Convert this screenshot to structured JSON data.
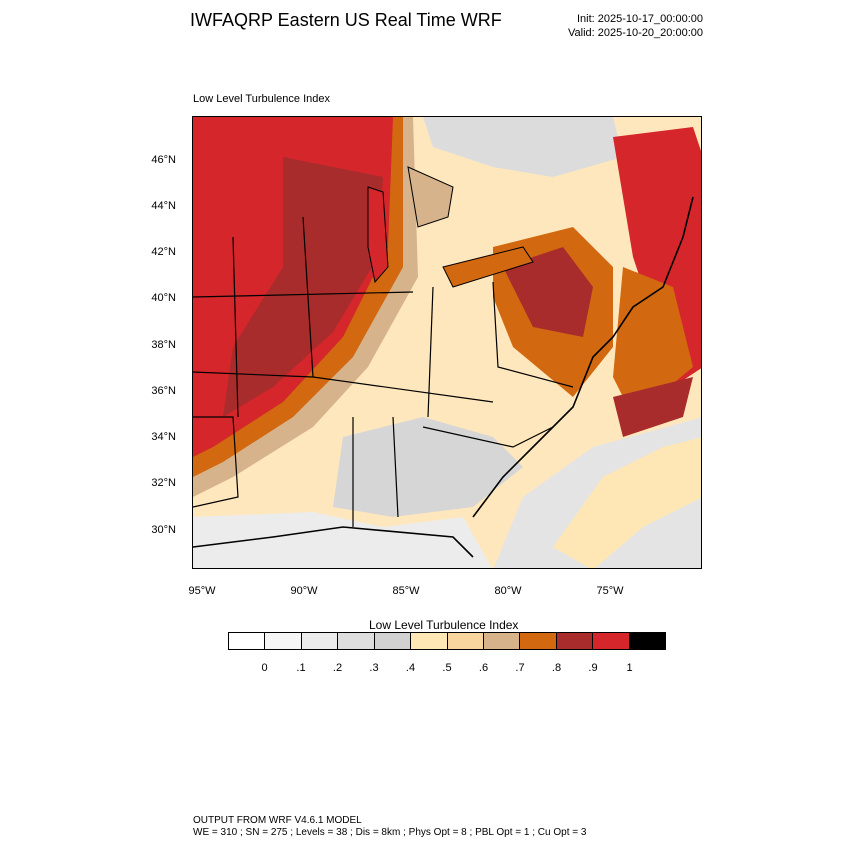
{
  "header": {
    "title": "IWFAQRP Eastern US Real Time WRF",
    "init": "Init: 2025-10-17_00:00:00",
    "valid": "Valid: 2025-10-20_20:00:00"
  },
  "map": {
    "subtitle": "Low Level Turbulence Index",
    "lat_labels": [
      "46°N",
      "44°N",
      "42°N",
      "40°N",
      "38°N",
      "36°N",
      "34°N",
      "32°N",
      "30°N"
    ],
    "lon_labels": [
      "95°W",
      "90°W",
      "85°W",
      "80°W",
      "75°W"
    ],
    "bounds": {
      "lat": [
        28.5,
        47.8
      ],
      "lon": [
        -95.5,
        -70.6
      ]
    }
  },
  "colorbar": {
    "title": "Low Level Turbulence Index",
    "labels": [
      "0",
      ".1",
      ".2",
      ".3",
      ".4",
      ".5",
      ".6",
      ".7",
      ".8",
      ".9",
      "1"
    ],
    "colors": [
      "#ffffff",
      "#f6f6f6",
      "#ececec",
      "#dedede",
      "#d1d1d1",
      "#ffe6b5",
      "#f8d49e",
      "#d7b38c",
      "#d26810",
      "#a92c2c",
      "#d4262b",
      "#000000"
    ]
  },
  "footer": {
    "line1": "OUTPUT FROM WRF V4.6.1 MODEL",
    "line2": "WE = 310 ; SN = 275 ; Levels = 38 ; Dis = 8km ; Phys Opt = 8 ; PBL Opt = 1 ; Cu Opt = 3"
  }
}
